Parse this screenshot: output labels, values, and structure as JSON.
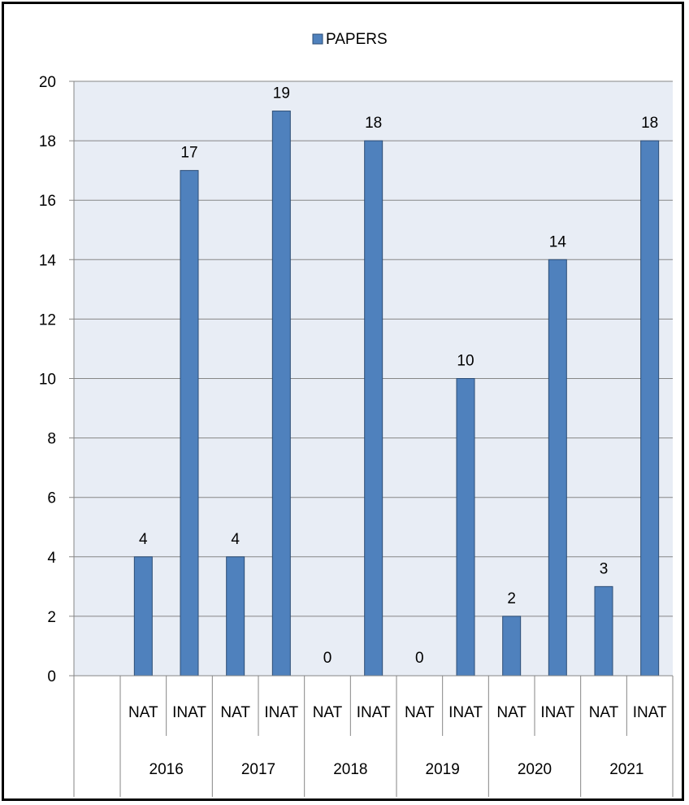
{
  "chart_data": {
    "type": "bar",
    "groups": [
      "2016",
      "2017",
      "2018",
      "2019",
      "2020",
      "2021"
    ],
    "subcategories": [
      "NAT",
      "INAT",
      "NAT",
      "INAT",
      "NAT",
      "INAT",
      "NAT",
      "INAT",
      "NAT",
      "INAT",
      "NAT",
      "INAT"
    ],
    "series": [
      {
        "name": "PAPERS",
        "values": [
          4,
          17,
          4,
          19,
          0,
          18,
          0,
          10,
          2,
          14,
          3,
          18
        ]
      }
    ],
    "xlabel": "",
    "ylabel": "",
    "ylim": [
      0,
      20
    ],
    "yticks": [
      0,
      2,
      4,
      6,
      8,
      10,
      12,
      14,
      16,
      18,
      20
    ],
    "grid": true,
    "legend_position": "top",
    "data_labels": true,
    "colors": {
      "bar_fill": "#4f81bd",
      "bar_stroke": "#2c4d75",
      "plot_background": "#e8edf5",
      "gridline": "#868686",
      "axis": "#868686"
    }
  }
}
